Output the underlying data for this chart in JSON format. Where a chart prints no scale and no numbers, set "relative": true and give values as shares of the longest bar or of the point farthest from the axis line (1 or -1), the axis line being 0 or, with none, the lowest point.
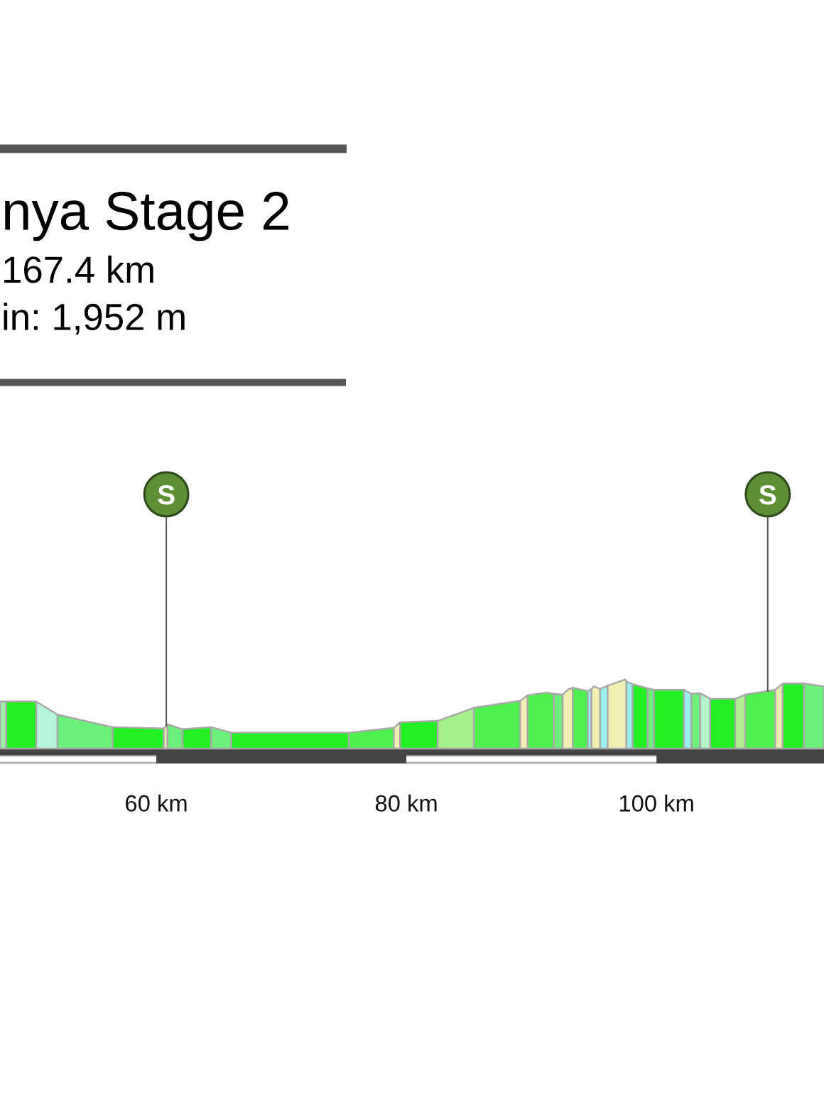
{
  "chart_data": {
    "type": "area",
    "relative": true,
    "title": "nya Stage 2",
    "subtitle": "167.4 km\nin: 1,952 m",
    "xlim": [
      47.5,
      113.4
    ],
    "xticks": [
      {
        "value": 60,
        "label": "60 km"
      },
      {
        "value": 80,
        "label": "80 km"
      },
      {
        "value": 100,
        "label": "100 km"
      }
    ],
    "annotations": [
      {
        "text": "S",
        "x": 60.8,
        "y": 0.33
      },
      {
        "text": "S",
        "x": 108.9,
        "y": 0.83
      }
    ],
    "series": [
      {
        "x": [
          47.5,
          48.0
        ],
        "values": [
          0.68,
          0.68
        ],
        "color": "#9ff0a8"
      },
      {
        "x": [
          48.0,
          50.4
        ],
        "values": [
          0.68,
          0.68
        ],
        "color": "#22f022"
      },
      {
        "x": [
          50.4,
          52.1
        ],
        "values": [
          0.68,
          0.49
        ],
        "color": "#b4f5dc"
      },
      {
        "x": [
          52.1,
          56.5
        ],
        "values": [
          0.49,
          0.31
        ],
        "color": "#6cf07c"
      },
      {
        "x": [
          56.5,
          60.6
        ],
        "values": [
          0.31,
          0.29
        ],
        "color": "#22f022"
      },
      {
        "x": [
          60.6,
          60.9
        ],
        "values": [
          0.29,
          0.35
        ],
        "color": "#f0f0b4"
      },
      {
        "x": [
          60.9,
          62.1
        ],
        "values": [
          0.35,
          0.28
        ],
        "color": "#6cf07c"
      },
      {
        "x": [
          62.1,
          64.4
        ],
        "values": [
          0.28,
          0.31
        ],
        "color": "#22f022"
      },
      {
        "x": [
          64.4,
          66.0
        ],
        "values": [
          0.31,
          0.23
        ],
        "color": "#6cf07c"
      },
      {
        "x": [
          66.0,
          75.4
        ],
        "values": [
          0.23,
          0.23
        ],
        "color": "#22f022"
      },
      {
        "x": [
          75.4,
          79.0
        ],
        "values": [
          0.23,
          0.3
        ],
        "color": "#4df04d"
      },
      {
        "x": [
          79.0,
          79.5
        ],
        "values": [
          0.3,
          0.38
        ],
        "color": "#f0f0b4"
      },
      {
        "x": [
          79.5,
          82.5
        ],
        "values": [
          0.38,
          0.4
        ],
        "color": "#22f022"
      },
      {
        "x": [
          82.5,
          85.4
        ],
        "values": [
          0.4,
          0.59
        ],
        "color": "#a6f08c"
      },
      {
        "x": [
          85.4,
          89.1
        ],
        "values": [
          0.59,
          0.69
        ],
        "color": "#4df04d"
      },
      {
        "x": [
          89.1,
          89.7
        ],
        "values": [
          0.69,
          0.77
        ],
        "color": "#f0f0b4"
      },
      {
        "x": [
          89.7,
          91.2,
          91.8
        ],
        "values": [
          0.77,
          0.81,
          0.79
        ],
        "color": "#4df04d"
      },
      {
        "x": [
          91.8,
          92.5
        ],
        "values": [
          0.79,
          0.78
        ],
        "color": "#6cf07c"
      },
      {
        "x": [
          92.5,
          92.9,
          93.3
        ],
        "values": [
          0.78,
          0.85,
          0.88
        ],
        "color": "#f0f0b4"
      },
      {
        "x": [
          93.3,
          94.5
        ],
        "values": [
          0.88,
          0.83
        ],
        "color": "#4df04d"
      },
      {
        "x": [
          94.5,
          94.8
        ],
        "values": [
          0.83,
          0.86
        ],
        "color": "#99f0ee"
      },
      {
        "x": [
          94.8,
          95.0,
          95.5
        ],
        "values": [
          0.86,
          0.9,
          0.86
        ],
        "color": "#f0f0b4"
      },
      {
        "x": [
          95.5,
          96.1
        ],
        "values": [
          0.86,
          0.91
        ],
        "color": "#99f0ee"
      },
      {
        "x": [
          96.1,
          97.5,
          97.6
        ],
        "values": [
          0.91,
          1.0,
          0.97
        ],
        "color": "#f0f0b4"
      },
      {
        "x": [
          97.6,
          98.1
        ],
        "values": [
          0.97,
          0.93
        ],
        "color": "#99f0ee"
      },
      {
        "x": [
          98.1,
          99.3
        ],
        "values": [
          0.93,
          0.87
        ],
        "color": "#22f022"
      },
      {
        "x": [
          99.3,
          99.8
        ],
        "values": [
          0.87,
          0.85
        ],
        "color": "#6cf07c"
      },
      {
        "x": [
          99.8,
          102.2
        ],
        "values": [
          0.85,
          0.85
        ],
        "color": "#22f022"
      },
      {
        "x": [
          102.2,
          102.8
        ],
        "values": [
          0.85,
          0.79
        ],
        "color": "#99f0ee"
      },
      {
        "x": [
          102.8,
          103.5
        ],
        "values": [
          0.79,
          0.8
        ],
        "color": "#6cf07c"
      },
      {
        "x": [
          103.5,
          104.3
        ],
        "values": [
          0.8,
          0.72
        ],
        "color": "#b4f5c8"
      },
      {
        "x": [
          104.3,
          106.3
        ],
        "values": [
          0.72,
          0.72
        ],
        "color": "#22f022"
      },
      {
        "x": [
          106.3,
          107.1
        ],
        "values": [
          0.72,
          0.78
        ],
        "color": "#b0f090"
      },
      {
        "x": [
          107.1,
          109.5
        ],
        "values": [
          0.78,
          0.85
        ],
        "color": "#4df04d"
      },
      {
        "x": [
          109.5,
          110.1
        ],
        "values": [
          0.85,
          0.94
        ],
        "color": "#f0f0b4"
      },
      {
        "x": [
          110.1,
          111.8
        ],
        "values": [
          0.94,
          0.94
        ],
        "color": "#22f022"
      },
      {
        "x": [
          111.8,
          113.4
        ],
        "values": [
          0.94,
          0.9
        ],
        "color": "#6cf07c"
      }
    ]
  }
}
